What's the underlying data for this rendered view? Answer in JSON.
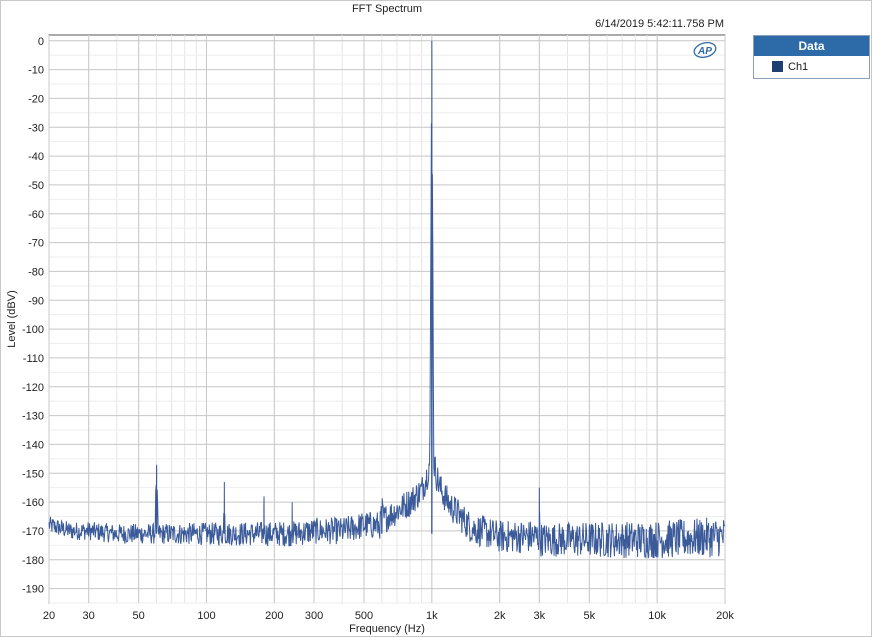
{
  "title": "FFT Spectrum",
  "timestamp": "6/14/2019 5:42:11.758 PM",
  "logo_text": "AP",
  "legend": {
    "header": "Data",
    "items": [
      {
        "label": "Ch1",
        "color": "#1e3f73"
      }
    ]
  },
  "chart_data": {
    "type": "line",
    "title": "FFT Spectrum",
    "xlabel": "Frequency (Hz)",
    "ylabel": "Level (dBV)",
    "x_scale": "log",
    "xlim": [
      20,
      20000
    ],
    "ylim": [
      -195,
      2
    ],
    "grid": true,
    "legend_position": "outside-top-right",
    "x_ticks": [
      {
        "value": 20,
        "label": "20"
      },
      {
        "value": 30,
        "label": "30"
      },
      {
        "value": 50,
        "label": "50"
      },
      {
        "value": 100,
        "label": "100"
      },
      {
        "value": 200,
        "label": "200"
      },
      {
        "value": 300,
        "label": "300"
      },
      {
        "value": 500,
        "label": "500"
      },
      {
        "value": 1000,
        "label": "1k"
      },
      {
        "value": 2000,
        "label": "2k"
      },
      {
        "value": 3000,
        "label": "3k"
      },
      {
        "value": 5000,
        "label": "5k"
      },
      {
        "value": 10000,
        "label": "10k"
      },
      {
        "value": 20000,
        "label": "20k"
      }
    ],
    "y_ticks": [
      0,
      -10,
      -20,
      -30,
      -40,
      -50,
      -60,
      -70,
      -80,
      -90,
      -100,
      -110,
      -120,
      -130,
      -140,
      -150,
      -160,
      -170,
      -180,
      -190
    ],
    "series": [
      {
        "name": "Ch1",
        "color": "#3a5a9a",
        "noise_floor_dBV": -171,
        "x": [
          20,
          25,
          30,
          40,
          59,
          60,
          61,
          80,
          100,
          119,
          120,
          121,
          150,
          170,
          179,
          180,
          181,
          200,
          239,
          240,
          241,
          300,
          400,
          500,
          590,
          600,
          610,
          700,
          800,
          900,
          950,
          980,
          1000,
          1020,
          1050,
          1100,
          1200,
          1500,
          2000,
          2990,
          3000,
          3010,
          5000,
          10000,
          20000
        ],
        "y": [
          -168,
          -170,
          -170,
          -171,
          -171,
          -148,
          -171,
          -171,
          -171,
          -171,
          -153,
          -171,
          -171,
          -171,
          -171,
          -158,
          -171,
          -171,
          -171,
          -160,
          -171,
          -170,
          -170,
          -168,
          -168,
          -162,
          -166,
          -163,
          -160,
          -156,
          -151,
          -146,
          0,
          -146,
          -151,
          -156,
          -161,
          -169,
          -172,
          -172,
          -155,
          -173,
          -173,
          -173,
          -172
        ]
      }
    ]
  }
}
